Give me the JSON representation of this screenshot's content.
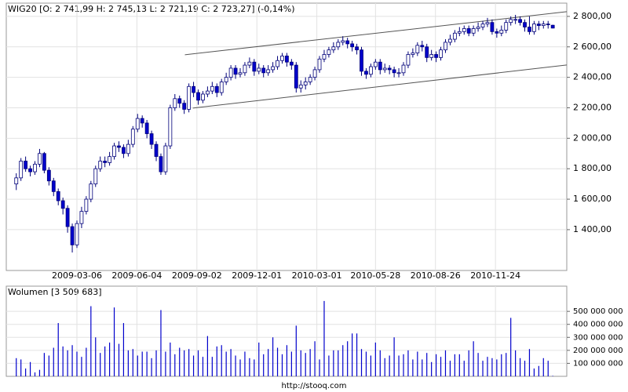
{
  "chart_data": {
    "type": "candlestick",
    "title": "WIG20 [O: 2 741,99 H: 2 745,13 L: 2 721,19 C: 2 723,27] (-0,14%)",
    "volume_title": "Wolumen [3 509 683]",
    "footer": "http://stooq.com",
    "up_color": "#ffffff",
    "down_color": "#0000cc",
    "edge_color": "#00007a",
    "volume_color": "#0000cc",
    "grid": true,
    "x": [
      "2008-12-05",
      "2008-12-12",
      "2008-12-19",
      "2008-12-26",
      "2009-01-02",
      "2009-01-09",
      "2009-01-16",
      "2009-01-23",
      "2009-01-30",
      "2009-02-06",
      "2009-02-13",
      "2009-02-20",
      "2009-02-27",
      "2009-03-06",
      "2009-03-13",
      "2009-03-20",
      "2009-03-27",
      "2009-04-03",
      "2009-04-10",
      "2009-04-17",
      "2009-04-24",
      "2009-05-01",
      "2009-05-08",
      "2009-05-15",
      "2009-05-22",
      "2009-05-29",
      "2009-06-05",
      "2009-06-12",
      "2009-06-19",
      "2009-06-26",
      "2009-07-03",
      "2009-07-10",
      "2009-07-17",
      "2009-07-24",
      "2009-07-31",
      "2009-08-07",
      "2009-08-14",
      "2009-08-21",
      "2009-08-28",
      "2009-09-04",
      "2009-09-11",
      "2009-09-18",
      "2009-09-25",
      "2009-10-02",
      "2009-10-09",
      "2009-10-16",
      "2009-10-23",
      "2009-10-30",
      "2009-11-06",
      "2009-11-13",
      "2009-11-20",
      "2009-11-27",
      "2009-12-04",
      "2009-12-11",
      "2009-12-18",
      "2009-12-25",
      "2010-01-01",
      "2010-01-08",
      "2010-01-15",
      "2010-01-22",
      "2010-01-29",
      "2010-02-05",
      "2010-02-12",
      "2010-02-19",
      "2010-02-26",
      "2010-03-05",
      "2010-03-12",
      "2010-03-19",
      "2010-03-26",
      "2010-04-02",
      "2010-04-09",
      "2010-04-16",
      "2010-04-23",
      "2010-04-30",
      "2010-05-07",
      "2010-05-14",
      "2010-05-21",
      "2010-05-28",
      "2010-06-04",
      "2010-06-11",
      "2010-06-18",
      "2010-06-25",
      "2010-07-02",
      "2010-07-09",
      "2010-07-16",
      "2010-07-23",
      "2010-07-30",
      "2010-08-06",
      "2010-08-13",
      "2010-08-20",
      "2010-08-27",
      "2010-09-03",
      "2010-09-10",
      "2010-09-17",
      "2010-09-24",
      "2010-10-01",
      "2010-10-08",
      "2010-10-15",
      "2010-10-22",
      "2010-10-29",
      "2010-11-05",
      "2010-11-12",
      "2010-11-19",
      "2010-11-26",
      "2010-12-03",
      "2010-12-10",
      "2010-12-17",
      "2010-12-24",
      "2010-12-31",
      "2011-01-07",
      "2011-01-14",
      "2011-01-21",
      "2011-01-28",
      "2011-02-04",
      "2011-02-11",
      "2011-02-18"
    ],
    "open": [
      1700,
      1740,
      1850,
      1800,
      1780,
      1830,
      1900,
      1790,
      1720,
      1650,
      1590,
      1540,
      1420,
      1300,
      1440,
      1520,
      1600,
      1700,
      1800,
      1850,
      1840,
      1880,
      1950,
      1940,
      1900,
      1960,
      2060,
      2130,
      2100,
      2030,
      1960,
      1880,
      1780,
      1950,
      2200,
      2260,
      2230,
      2190,
      2340,
      2300,
      2250,
      2290,
      2310,
      2340,
      2300,
      2370,
      2400,
      2460,
      2420,
      2430,
      2480,
      2500,
      2440,
      2460,
      2430,
      2450,
      2470,
      2510,
      2540,
      2500,
      2480,
      2330,
      2350,
      2370,
      2400,
      2450,
      2520,
      2550,
      2580,
      2600,
      2630,
      2640,
      2620,
      2600,
      2580,
      2440,
      2420,
      2470,
      2500,
      2450,
      2460,
      2450,
      2430,
      2430,
      2480,
      2550,
      2560,
      2610,
      2600,
      2530,
      2550,
      2530,
      2580,
      2630,
      2650,
      2690,
      2700,
      2720,
      2690,
      2720,
      2730,
      2750,
      2760,
      2700,
      2690,
      2710,
      2760,
      2780,
      2780,
      2760,
      2730,
      2700,
      2750,
      2740,
      2750,
      2741.99
    ],
    "high": [
      1770,
      1870,
      1880,
      1820,
      1850,
      1930,
      1910,
      1810,
      1740,
      1670,
      1610,
      1560,
      1440,
      1460,
      1550,
      1620,
      1720,
      1820,
      1880,
      1880,
      1910,
      1970,
      1980,
      1960,
      1990,
      2080,
      2160,
      2150,
      2120,
      2050,
      1980,
      1900,
      1970,
      2220,
      2290,
      2280,
      2250,
      2360,
      2370,
      2320,
      2310,
      2340,
      2370,
      2360,
      2390,
      2430,
      2480,
      2480,
      2460,
      2500,
      2530,
      2520,
      2490,
      2480,
      2480,
      2500,
      2540,
      2560,
      2560,
      2520,
      2500,
      2380,
      2400,
      2420,
      2470,
      2540,
      2580,
      2600,
      2630,
      2650,
      2670,
      2660,
      2640,
      2620,
      2600,
      2460,
      2490,
      2520,
      2520,
      2490,
      2480,
      2470,
      2460,
      2500,
      2570,
      2590,
      2630,
      2640,
      2620,
      2580,
      2570,
      2600,
      2650,
      2680,
      2710,
      2730,
      2740,
      2740,
      2740,
      2760,
      2770,
      2790,
      2780,
      2720,
      2740,
      2780,
      2800,
      2810,
      2800,
      2780,
      2800,
      2770,
      2770,
      2770,
      2770,
      2745.13
    ],
    "low": [
      1660,
      1720,
      1780,
      1750,
      1760,
      1810,
      1770,
      1690,
      1620,
      1560,
      1500,
      1380,
      1250,
      1280,
      1410,
      1500,
      1580,
      1680,
      1780,
      1810,
      1820,
      1860,
      1910,
      1870,
      1880,
      1940,
      2040,
      2070,
      2000,
      1930,
      1850,
      1760,
      1760,
      1930,
      2180,
      2200,
      2160,
      2170,
      2270,
      2220,
      2230,
      2270,
      2290,
      2270,
      2280,
      2350,
      2380,
      2390,
      2400,
      2410,
      2460,
      2410,
      2420,
      2400,
      2410,
      2430,
      2450,
      2490,
      2470,
      2450,
      2300,
      2300,
      2320,
      2350,
      2380,
      2430,
      2500,
      2530,
      2560,
      2580,
      2610,
      2590,
      2570,
      2550,
      2410,
      2390,
      2400,
      2450,
      2420,
      2430,
      2420,
      2400,
      2400,
      2410,
      2460,
      2530,
      2540,
      2570,
      2500,
      2510,
      2500,
      2510,
      2560,
      2610,
      2630,
      2670,
      2680,
      2670,
      2670,
      2700,
      2710,
      2730,
      2680,
      2660,
      2670,
      2690,
      2740,
      2750,
      2740,
      2700,
      2680,
      2680,
      2710,
      2720,
      2720,
      2721.19
    ],
    "close": [
      1740,
      1850,
      1800,
      1780,
      1830,
      1900,
      1790,
      1720,
      1650,
      1590,
      1540,
      1420,
      1300,
      1440,
      1520,
      1600,
      1700,
      1800,
      1850,
      1840,
      1880,
      1950,
      1940,
      1900,
      1960,
      2060,
      2130,
      2100,
      2030,
      1960,
      1880,
      1780,
      1950,
      2200,
      2260,
      2230,
      2190,
      2340,
      2300,
      2250,
      2290,
      2310,
      2340,
      2300,
      2370,
      2400,
      2460,
      2420,
      2430,
      2480,
      2500,
      2440,
      2460,
      2430,
      2450,
      2470,
      2510,
      2540,
      2500,
      2480,
      2330,
      2350,
      2370,
      2400,
      2450,
      2520,
      2550,
      2580,
      2600,
      2630,
      2640,
      2620,
      2600,
      2580,
      2440,
      2420,
      2470,
      2500,
      2450,
      2460,
      2450,
      2430,
      2430,
      2480,
      2550,
      2560,
      2610,
      2600,
      2530,
      2550,
      2530,
      2580,
      2630,
      2650,
      2690,
      2700,
      2720,
      2690,
      2720,
      2730,
      2750,
      2760,
      2700,
      2690,
      2710,
      2760,
      2780,
      2780,
      2760,
      2730,
      2700,
      2750,
      2740,
      2750,
      2745,
      2723.27
    ],
    "volume": [
      140000000,
      130000000,
      60000000,
      110000000,
      30000000,
      50000000,
      180000000,
      160000000,
      220000000,
      410000000,
      230000000,
      200000000,
      240000000,
      190000000,
      150000000,
      220000000,
      540000000,
      300000000,
      180000000,
      230000000,
      260000000,
      530000000,
      250000000,
      410000000,
      200000000,
      210000000,
      160000000,
      190000000,
      190000000,
      140000000,
      200000000,
      510000000,
      190000000,
      260000000,
      170000000,
      220000000,
      200000000,
      210000000,
      160000000,
      200000000,
      150000000,
      310000000,
      150000000,
      230000000,
      240000000,
      190000000,
      210000000,
      160000000,
      130000000,
      190000000,
      140000000,
      130000000,
      260000000,
      170000000,
      210000000,
      300000000,
      220000000,
      170000000,
      240000000,
      190000000,
      390000000,
      200000000,
      180000000,
      210000000,
      270000000,
      130000000,
      580000000,
      160000000,
      200000000,
      200000000,
      240000000,
      270000000,
      330000000,
      330000000,
      210000000,
      190000000,
      160000000,
      260000000,
      200000000,
      140000000,
      160000000,
      300000000,
      160000000,
      170000000,
      200000000,
      130000000,
      190000000,
      130000000,
      180000000,
      110000000,
      170000000,
      150000000,
      200000000,
      120000000,
      170000000,
      170000000,
      120000000,
      200000000,
      270000000,
      180000000,
      120000000,
      150000000,
      140000000,
      130000000,
      170000000,
      180000000,
      450000000,
      200000000,
      140000000,
      120000000,
      210000000,
      60000000,
      80000000,
      140000000,
      120000000,
      3509683
    ],
    "trendlines": [
      {
        "x": [
          "2009-08-15",
          "2011-03-11"
        ],
        "y": [
          2548,
          2831
        ]
      },
      {
        "x": [
          "2009-08-27",
          "2011-03-11"
        ],
        "y": [
          2198,
          2481
        ]
      }
    ],
    "xlim": [
      "2008-11-20",
      "2011-03-11"
    ],
    "xticks": [
      "2009-03-06",
      "2009-06-04",
      "2009-09-02",
      "2009-12-01",
      "2010-03-01",
      "2010-05-28",
      "2010-08-26",
      "2010-11-24"
    ],
    "ylim": [
      1132,
      2887
    ],
    "yticks": [
      {
        "value": 1400,
        "label": "1 400,00"
      },
      {
        "value": 1600,
        "label": "1 600,00"
      },
      {
        "value": 1800,
        "label": "1 800,00"
      },
      {
        "value": 2000,
        "label": "2 000,00"
      },
      {
        "value": 2200,
        "label": "2 200,00"
      },
      {
        "value": 2400,
        "label": "2 400,00"
      },
      {
        "value": 2600,
        "label": "2 600,00"
      },
      {
        "value": 2800,
        "label": "2 800,00"
      }
    ],
    "y2lim": [
      0,
      694000000
    ],
    "y2ticks": [
      {
        "value": 100000000,
        "label": "100 000 000"
      },
      {
        "value": 200000000,
        "label": "200 000 000"
      },
      {
        "value": 300000000,
        "label": "300 000 000"
      },
      {
        "value": 400000000,
        "label": "400 000 000"
      },
      {
        "value": 500000000,
        "label": "500 000 000"
      }
    ]
  }
}
